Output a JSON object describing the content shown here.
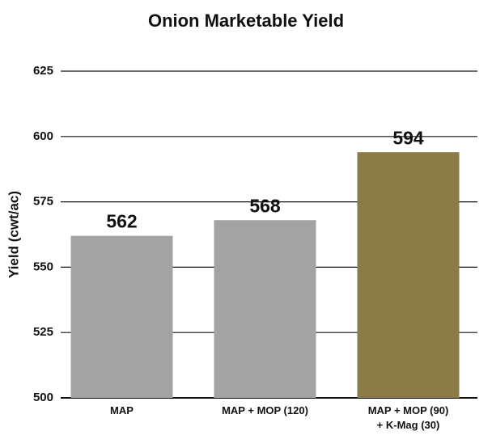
{
  "chart_data": {
    "type": "bar",
    "title": "Onion Marketable Yield",
    "y_label": "Yield (cwt/ac)",
    "categories": [
      "MAP",
      "MAP + MOP (120)",
      "MAP + MOP (90)\n+ K-Mag (30)"
    ],
    "values": [
      562,
      568,
      594
    ],
    "colors": [
      "#a3a3a3",
      "#a3a3a3",
      "#8a7b47"
    ],
    "ylim": [
      500,
      625
    ],
    "yticks": [
      500,
      525,
      550,
      575,
      600,
      625
    ],
    "grid": true
  }
}
